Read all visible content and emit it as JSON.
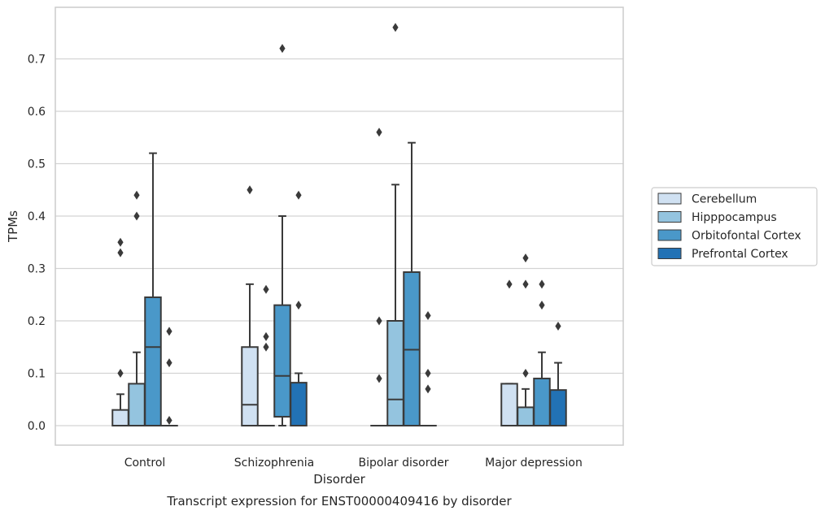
{
  "chart_data": {
    "type": "box",
    "caption": "Transcript expression for ENST00000409416 by disorder",
    "xlabel": "Disorder",
    "ylabel": "TPMs",
    "ylim": [
      -0.037,
      0.8
    ],
    "yticks": [
      0.0,
      0.1,
      0.2,
      0.3,
      0.4,
      0.5,
      0.6,
      0.7
    ],
    "grid": true,
    "legend": {
      "placement": "right",
      "entries": [
        "Cerebellum",
        "Hipppocampus",
        "Orbitofontal Cortex",
        "Prefrontal Cortex"
      ]
    },
    "colors": [
      "#d0e1f2",
      "#94c4df",
      "#4a98c9",
      "#2272b5"
    ],
    "categories": [
      "Control",
      "Schizophrenia",
      "Bipolar disorder",
      "Major depression"
    ],
    "series": [
      {
        "name": "Cerebellum",
        "boxes": [
          {
            "q1": 0.0,
            "median": 0.0,
            "q3": 0.03,
            "whislo": 0.0,
            "whishi": 0.06,
            "fliers": [
              0.1,
              0.33,
              0.35
            ]
          },
          {
            "q1": 0.0,
            "median": 0.04,
            "q3": 0.15,
            "whislo": 0.0,
            "whishi": 0.27,
            "fliers": [
              0.45
            ]
          },
          {
            "q1": 0.0,
            "median": 0.0,
            "q3": 0.0,
            "whislo": 0.0,
            "whishi": 0.0,
            "fliers": [
              0.09,
              0.2,
              0.56
            ]
          },
          {
            "q1": 0.0,
            "median": 0.0,
            "q3": 0.08,
            "whislo": 0.0,
            "whishi": 0.08,
            "fliers": [
              0.27
            ]
          }
        ]
      },
      {
        "name": "Hipppocampus",
        "boxes": [
          {
            "q1": 0.0,
            "median": 0.0,
            "q3": 0.08,
            "whislo": 0.0,
            "whishi": 0.14,
            "fliers": [
              0.4,
              0.44
            ]
          },
          {
            "q1": 0.0,
            "median": 0.0,
            "q3": 0.0,
            "whislo": 0.0,
            "whishi": 0.0,
            "fliers": [
              0.15,
              0.17,
              0.26
            ]
          },
          {
            "q1": 0.0,
            "median": 0.05,
            "q3": 0.2,
            "whislo": 0.0,
            "whishi": 0.46,
            "fliers": [
              0.76
            ]
          },
          {
            "q1": 0.0,
            "median": 0.0,
            "q3": 0.035,
            "whislo": 0.0,
            "whishi": 0.07,
            "fliers": [
              0.1,
              0.27,
              0.32
            ]
          }
        ]
      },
      {
        "name": "Orbitofontal Cortex",
        "boxes": [
          {
            "q1": 0.0,
            "median": 0.15,
            "q3": 0.245,
            "whislo": 0.0,
            "whishi": 0.52,
            "fliers": []
          },
          {
            "q1": 0.017,
            "median": 0.095,
            "q3": 0.23,
            "whislo": 0.0,
            "whishi": 0.4,
            "fliers": [
              0.72
            ]
          },
          {
            "q1": 0.0,
            "median": 0.145,
            "q3": 0.293,
            "whislo": 0.0,
            "whishi": 0.54,
            "fliers": []
          },
          {
            "q1": 0.0,
            "median": 0.0,
            "q3": 0.09,
            "whislo": 0.0,
            "whishi": 0.14,
            "fliers": [
              0.23,
              0.27
            ]
          }
        ]
      },
      {
        "name": "Prefrontal Cortex",
        "boxes": [
          {
            "q1": 0.0,
            "median": 0.0,
            "q3": 0.0,
            "whislo": 0.0,
            "whishi": 0.0,
            "fliers": [
              0.01,
              0.12,
              0.18
            ]
          },
          {
            "q1": 0.0,
            "median": 0.0,
            "q3": 0.082,
            "whislo": 0.0,
            "whishi": 0.1,
            "fliers": [
              0.23,
              0.44
            ]
          },
          {
            "q1": 0.0,
            "median": 0.0,
            "q3": 0.0,
            "whislo": 0.0,
            "whishi": 0.0,
            "fliers": [
              0.07,
              0.1,
              0.21
            ]
          },
          {
            "q1": 0.0,
            "median": 0.0,
            "q3": 0.068,
            "whislo": 0.0,
            "whishi": 0.12,
            "fliers": [
              0.19
            ]
          }
        ]
      }
    ]
  }
}
